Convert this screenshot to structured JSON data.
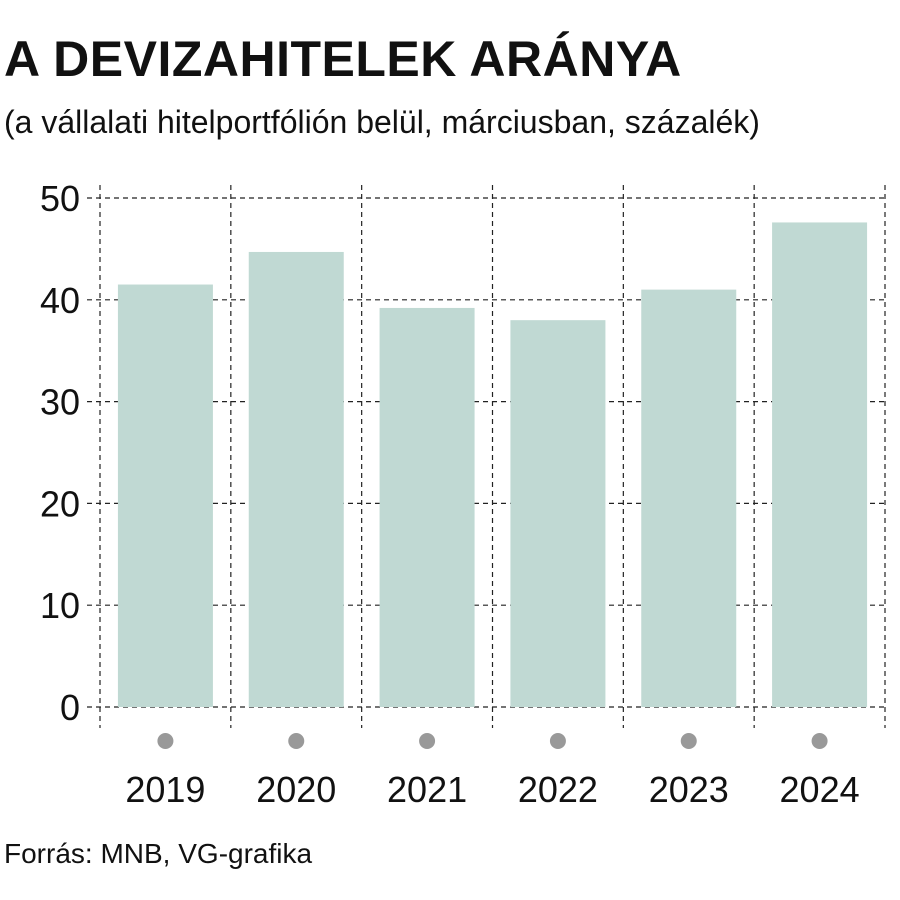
{
  "chart_data": {
    "type": "bar",
    "title": "A DEVIZAHITELEK ARÁNYA",
    "subtitle": "(a vállalati hitelportfólión belül, márciusban, százalék)",
    "categories": [
      "2019",
      "2020",
      "2021",
      "2022",
      "2023",
      "2024"
    ],
    "values": [
      41.5,
      44.7,
      39.2,
      38.0,
      41.0,
      47.6
    ],
    "ylim": [
      0,
      50
    ],
    "yticks": [
      "0",
      "10",
      "20",
      "30",
      "40",
      "50"
    ],
    "grid": "dashed",
    "bar_color": "#c0d9d3",
    "marker_color": "#999999",
    "source": "Forrás: MNB, VG-grafika"
  }
}
